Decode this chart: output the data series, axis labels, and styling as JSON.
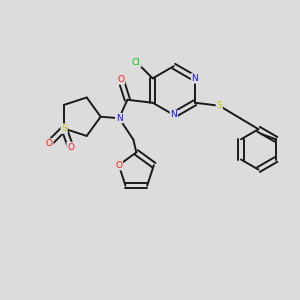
{
  "background_color": "#dcdcdc",
  "bond_color": "#1a1a1a",
  "bond_width": 1.4,
  "atom_colors": {
    "N": "#1414ff",
    "O": "#ff1414",
    "S": "#c8c800",
    "Cl": "#00c800",
    "C": "#1a1a1a"
  },
  "font_size": 6.5,
  "figsize": [
    3.0,
    3.0
  ],
  "dpi": 100,
  "xlim": [
    0,
    10
  ],
  "ylim": [
    0,
    10
  ]
}
